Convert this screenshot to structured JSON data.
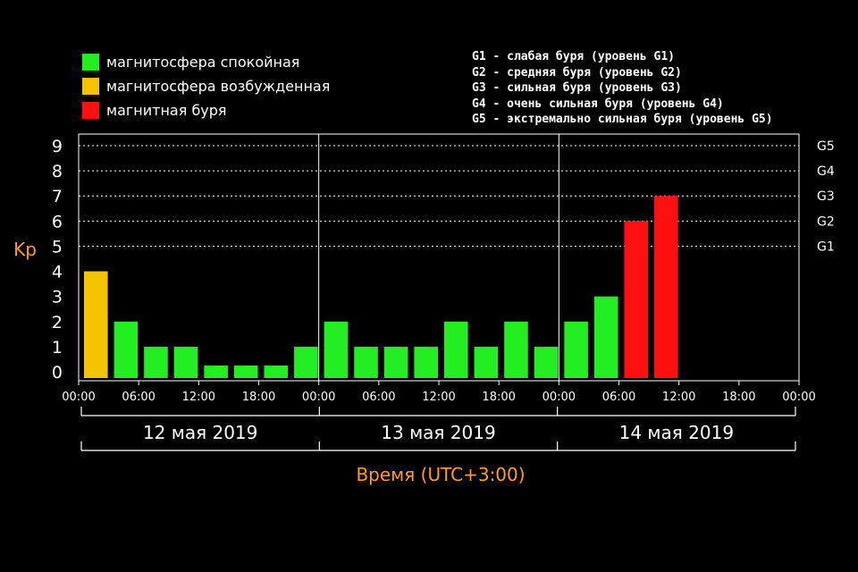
{
  "legend": {
    "items": [
      {
        "label": "магнитосфера спокойная",
        "color": "#22ee22"
      },
      {
        "label": "магнитосфера возбужденная",
        "color": "#f5c400"
      },
      {
        "label": "магнитная буря",
        "color": "#ff1010"
      }
    ],
    "g_scale": [
      "G1 - слабая буря (уровень G1)",
      "G2 - средняя буря (уровень G2)",
      "G3 - сильная буря (уровень G3)",
      "G4 - очень сильная буря (уровень G4)",
      "G5 - экстремально сильная буря (уровень G5)"
    ]
  },
  "chart_data": {
    "type": "bar",
    "ylabel": "Kp",
    "xlabel": "Время (UTC+3:00)",
    "ylim": [
      0,
      9
    ],
    "yticks": [
      0,
      1,
      2,
      3,
      4,
      5,
      6,
      7,
      8,
      9
    ],
    "g_ticks": [
      {
        "label": "G1",
        "kp": 5
      },
      {
        "label": "G2",
        "kp": 6
      },
      {
        "label": "G3",
        "kp": 7
      },
      {
        "label": "G4",
        "kp": 8
      },
      {
        "label": "G5",
        "kp": 9
      }
    ],
    "xticks": [
      "00:00",
      "06:00",
      "12:00",
      "18:00",
      "00:00",
      "06:00",
      "12:00",
      "18:00",
      "00:00",
      "06:00",
      "12:00",
      "18:00",
      "00:00"
    ],
    "days": [
      "12 мая 2019",
      "13 мая 2019",
      "14 мая 2019"
    ],
    "interval_hours": 3,
    "values": [
      4,
      2,
      1,
      1,
      0,
      0,
      0,
      1,
      2,
      1,
      1,
      1,
      2,
      1,
      2,
      1,
      2,
      3,
      6,
      7
    ],
    "value_colors": {
      "quiet": "#22ee22",
      "active": "#f5c400",
      "storm": "#ff1010"
    },
    "grid": true
  }
}
